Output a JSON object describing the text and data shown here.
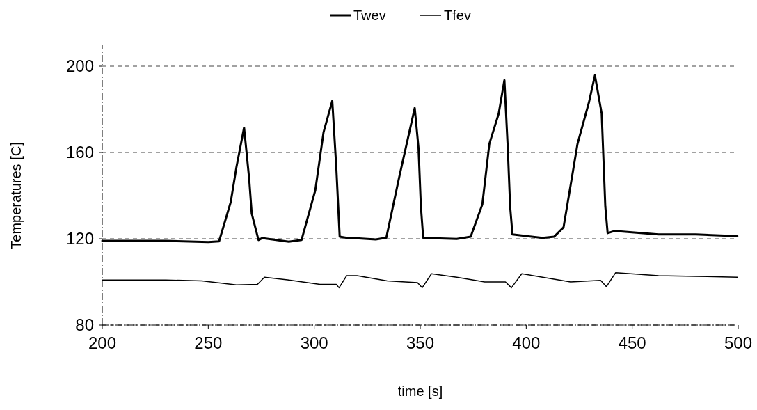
{
  "chart_data": {
    "type": "line",
    "xlabel": "time [s]",
    "ylabel": "Temperatures [C]",
    "xlim": [
      200,
      500
    ],
    "ylim": [
      80,
      200
    ],
    "xticks": [
      200,
      250,
      300,
      350,
      400,
      450,
      500
    ],
    "yticks": [
      80,
      120,
      160,
      200
    ],
    "grid": "y",
    "legend": "top",
    "series": [
      {
        "name": "Twev",
        "color": "#000000",
        "line_style": "solid",
        "x": [
          200,
          230,
          250,
          255.1,
          260.6,
          263.3,
          266.9,
          269.3,
          270.5,
          273.7,
          275.4,
          288,
          294,
          300.5,
          304.4,
          308.5,
          310.4,
          312,
          315,
          329,
          334,
          339.9,
          347.4,
          349.2,
          350.3,
          351.4,
          367.2,
          373.8,
          379.3,
          382.6,
          387,
          389.7,
          391.3,
          392.4,
          393.5,
          407.7,
          413.2,
          417.6,
          420.9,
          424.2,
          429.6,
          432.4,
          435.6,
          437.3,
          438.4,
          441.6,
          462.4,
          480,
          499.6
        ],
        "values": [
          119,
          119,
          118.5,
          118.8,
          137,
          153.2,
          171.5,
          147.8,
          131.7,
          119.4,
          120.3,
          118.6,
          119.4,
          142.5,
          169.4,
          183.9,
          153,
          121,
          120.5,
          119.7,
          120.5,
          147.8,
          180.6,
          161.8,
          135,
          120.4,
          119.9,
          121,
          136,
          164,
          178,
          193.5,
          161.8,
          135,
          122,
          120.4,
          121,
          125.3,
          144.6,
          164,
          183.3,
          195.7,
          178,
          135,
          122.6,
          123.6,
          122,
          122,
          121.2
        ]
      },
      {
        "name": "Tfev",
        "color": "#000000",
        "line_style": "solid",
        "x": [
          200,
          230,
          247,
          263.3,
          273.2,
          276.5,
          287.4,
          302.7,
          310.4,
          311.7,
          315.3,
          320.2,
          334.4,
          348.7,
          350.9,
          355.3,
          367.2,
          380.4,
          390.2,
          393,
          397.9,
          407.7,
          420.9,
          435.1,
          437.8,
          442.2,
          462.4,
          480,
          499.6
        ],
        "values": [
          100.9,
          100.9,
          100.5,
          98.6,
          98.9,
          102.2,
          101,
          98.9,
          98.9,
          97.3,
          102.9,
          102.9,
          100.5,
          99.7,
          97.3,
          103.8,
          102.2,
          100,
          100,
          97.3,
          103.8,
          102.2,
          100,
          100.7,
          97.8,
          104.3,
          102.9,
          102.6,
          102.2
        ]
      }
    ]
  }
}
